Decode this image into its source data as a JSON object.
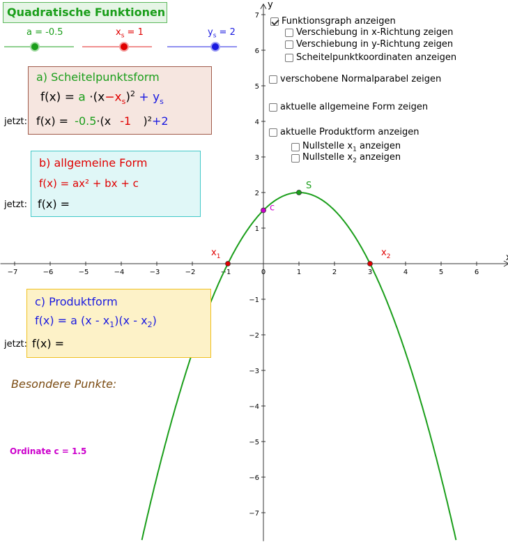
{
  "title": "Quadratische Funktionen",
  "sliders": [
    {
      "label_pre": "a = -0.5",
      "label_sub": "",
      "label_post": "",
      "value": -0.5,
      "color": "#1a9e1a"
    },
    {
      "label_pre": "x",
      "label_sub": "s",
      "label_post": " = 1",
      "value": 1,
      "color": "#e00000"
    },
    {
      "label_pre": "y",
      "label_sub": "s",
      "label_post": " = 2",
      "value": 2,
      "color": "#1a1ae0"
    }
  ],
  "panel_a": {
    "heading": "a)  Scheitelpunktsform",
    "formula_f": "f(x) =",
    "formula_a": "a",
    "formula_dot": "·(x",
    "formula_minus": "−x",
    "formula_sub_s": "s",
    "formula_close": ")",
    "formula_sq": "2",
    "formula_plus": "+",
    "formula_ys": "y",
    "formula_ys_sub": "s",
    "jetzt": "jetzt:",
    "now_f": "f(x) =",
    "now_a": "-0.5",
    "now_dot": "·(x",
    "now_xs": "-1",
    "now_close": ")²",
    "now_plus": "+",
    "now_ys": "2"
  },
  "panel_b": {
    "heading": "b)  allgemeine Form",
    "formula": "f(x) = ax² + bx + c",
    "jetzt": "jetzt:",
    "now_f": "f(x) ="
  },
  "panel_c": {
    "heading": "c)  Produktform",
    "formula_pre": "f(x) = a (x - x",
    "formula_sub1": "1",
    "formula_mid": ")(x - x",
    "formula_sub2": "2",
    "formula_post": ")",
    "jetzt": "jetzt:",
    "now_f": "f(x) ="
  },
  "besondere": "Besondere Punkte:",
  "ordinate": "Ordinate  c = 1.5",
  "checkboxes": [
    {
      "label": "Funktionsgraph anzeigen",
      "checked": true
    },
    {
      "label": "Verschiebung in x-Richtung zeigen",
      "checked": false
    },
    {
      "label": "Verschiebung in y-Richtung zeigen",
      "checked": false
    },
    {
      "label": "Scheitelpunktkoordinaten anzeigen",
      "checked": false
    },
    {
      "label": "verschobene Normalparabel zeigen",
      "checked": false
    },
    {
      "label": "aktuelle allgemeine Form zeigen",
      "checked": false
    },
    {
      "label": "aktuelle Produktform anzeigen",
      "checked": false
    },
    {
      "label_pre": "Nullstelle x",
      "label_sub": "1",
      "label_post": " anzeigen",
      "checked": false
    },
    {
      "label_pre": "Nullstelle x",
      "label_sub": "2",
      "label_post": " anzeigen",
      "checked": false
    }
  ],
  "chart_data": {
    "type": "line",
    "function": "f(x) = -0.5·(x-1)² + 2",
    "coefficients": {
      "a": -0.5,
      "xs": 1,
      "ys": 2
    },
    "xlim": [
      -7.4,
      6.9
    ],
    "ylim": [
      -7.8,
      7.3
    ],
    "x_ticks": [
      -7,
      -6,
      -5,
      -4,
      -3,
      -2,
      -1,
      0,
      1,
      2,
      3,
      4,
      5,
      6
    ],
    "y_ticks": [
      -7,
      -6,
      -5,
      -4,
      -3,
      -2,
      -1,
      1,
      2,
      3,
      4,
      5,
      6,
      7
    ],
    "xlabel": "x",
    "ylabel": "y",
    "points": [
      {
        "name": "S",
        "x": 1,
        "y": 2,
        "color": "#1a9e1a"
      },
      {
        "name": "c",
        "x": 0,
        "y": 1.5,
        "color": "#cc00cc"
      },
      {
        "name": "x",
        "sub": "1",
        "x": -1,
        "y": 0,
        "color": "#e00000"
      },
      {
        "name": "x",
        "sub": "2",
        "x": 3,
        "y": 0,
        "color": "#e00000"
      }
    ],
    "curve_color": "#1a9e1a"
  }
}
